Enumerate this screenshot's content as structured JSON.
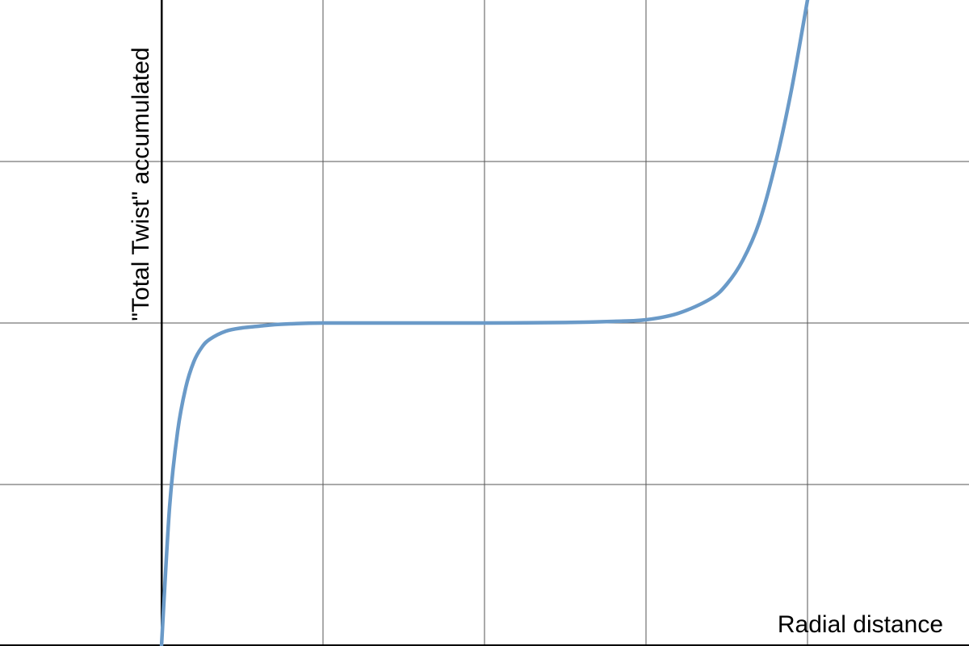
{
  "chart_data": {
    "type": "line",
    "title": "",
    "xlabel": "Radial distance",
    "ylabel": "\"Total Twist\" accumulated",
    "xlim": [
      -1,
      5
    ],
    "ylim": [
      0,
      4
    ],
    "grid": true,
    "x_gridlines": [
      0,
      1,
      2,
      3,
      4
    ],
    "y_gridlines": [
      1,
      2,
      3
    ],
    "series": [
      {
        "name": "Total Twist",
        "color": "#6a9ac8",
        "x": [
          0,
          0.05,
          0.1,
          0.15,
          0.2,
          0.25,
          0.3,
          0.4,
          0.5,
          0.6,
          0.7,
          0.8,
          1.0,
          1.5,
          2.0,
          2.5,
          2.8,
          3.0,
          3.2,
          3.4,
          3.5,
          3.6,
          3.7,
          3.8,
          3.9,
          4.0
        ],
        "y": [
          0,
          0.86,
          1.33,
          1.6,
          1.76,
          1.85,
          1.9,
          1.95,
          1.97,
          1.98,
          1.99,
          1.995,
          2.0,
          2.0,
          2.0,
          2.003,
          2.01,
          2.02,
          2.06,
          2.15,
          2.24,
          2.39,
          2.62,
          2.98,
          3.44,
          4.0
        ]
      }
    ]
  }
}
